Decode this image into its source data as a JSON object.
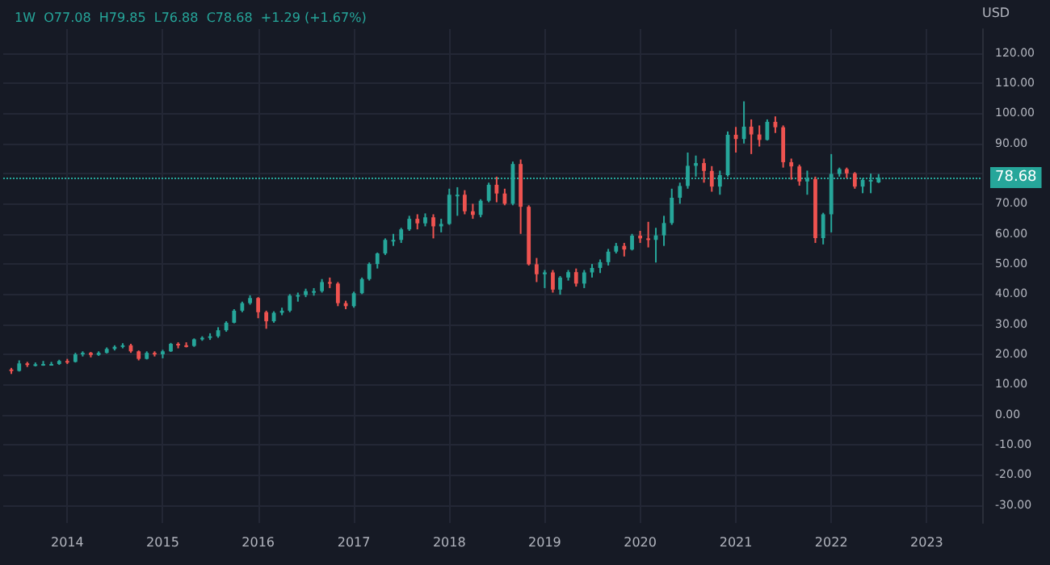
{
  "chart_data": {
    "type": "candlestick",
    "title": "1W  O77.08  H79.85  L76.88  C78.68  +1.29 (+1.67%)",
    "ylabel": "USD",
    "x": [
      "2013-06",
      "2013-07",
      "2013-08",
      "2013-09",
      "2013-10",
      "2013-11",
      "2013-12",
      "2014-01",
      "2014-02",
      "2014-03",
      "2014-04",
      "2014-05",
      "2014-06",
      "2014-07",
      "2014-08",
      "2014-09",
      "2014-10",
      "2014-11",
      "2014-12",
      "2015-01",
      "2015-02",
      "2015-03",
      "2015-04",
      "2015-05",
      "2015-06",
      "2015-07",
      "2015-08",
      "2015-09",
      "2015-10",
      "2015-11",
      "2015-12",
      "2016-01",
      "2016-02",
      "2016-03",
      "2016-04",
      "2016-05",
      "2016-06",
      "2016-07",
      "2016-08",
      "2016-09",
      "2016-10",
      "2016-11",
      "2016-12",
      "2017-01",
      "2017-02",
      "2017-03",
      "2017-04",
      "2017-05",
      "2017-06",
      "2017-07",
      "2017-08",
      "2017-09",
      "2017-10",
      "2017-11",
      "2017-12",
      "2018-01",
      "2018-02",
      "2018-03",
      "2018-04",
      "2018-05",
      "2018-06",
      "2018-07",
      "2018-08",
      "2018-09",
      "2018-10",
      "2018-11",
      "2018-12",
      "2019-01",
      "2019-02",
      "2019-03",
      "2019-04",
      "2019-05",
      "2019-06",
      "2019-07",
      "2019-08",
      "2019-09",
      "2019-10",
      "2019-11",
      "2019-12",
      "2020-01",
      "2020-02",
      "2020-03",
      "2020-04",
      "2020-05",
      "2020-06",
      "2020-07",
      "2020-08",
      "2020-09",
      "2020-10",
      "2020-11",
      "2020-12",
      "2021-01",
      "2021-02",
      "2021-03",
      "2021-04",
      "2021-05",
      "2021-06",
      "2021-07",
      "2021-08",
      "2021-09",
      "2021-10",
      "2021-11",
      "2021-12",
      "2022-01",
      "2022-02",
      "2022-03",
      "2022-04",
      "2022-05",
      "2022-06",
      "2022-07"
    ],
    "ohlc": [
      [
        15,
        15.5,
        13.5,
        14.5
      ],
      [
        14.5,
        18,
        14.3,
        17
      ],
      [
        17,
        17.5,
        15.8,
        16.5
      ],
      [
        16.5,
        17.3,
        16,
        16.7
      ],
      [
        16.7,
        17.8,
        16.2,
        16.8
      ],
      [
        16.8,
        17.5,
        16.3,
        16.8
      ],
      [
        16.8,
        18.2,
        16.5,
        17.8
      ],
      [
        17.8,
        18.5,
        16.8,
        17.5
      ],
      [
        17.5,
        20.5,
        17.3,
        20
      ],
      [
        20,
        21,
        19.3,
        20.5
      ],
      [
        20.5,
        20.8,
        19,
        19.8
      ],
      [
        19.8,
        21,
        19.5,
        20.5
      ],
      [
        20.5,
        22.3,
        20.3,
        21.8
      ],
      [
        21.8,
        23,
        21.3,
        22.5
      ],
      [
        22.5,
        23.7,
        22,
        23
      ],
      [
        23,
        23.5,
        20.5,
        21
      ],
      [
        21,
        21.3,
        18,
        18.5
      ],
      [
        18.5,
        21,
        18.3,
        20.5
      ],
      [
        20.5,
        21,
        19.3,
        20
      ],
      [
        20,
        21.5,
        18.7,
        21
      ],
      [
        21,
        23.8,
        20.8,
        23.5
      ],
      [
        23.5,
        24,
        22,
        23
      ],
      [
        23,
        24,
        22.3,
        22.8
      ],
      [
        22.8,
        25.3,
        22.5,
        25
      ],
      [
        25,
        26,
        24.5,
        25.5
      ],
      [
        25.5,
        27,
        24.8,
        26
      ],
      [
        26,
        29,
        25.5,
        28
      ],
      [
        28,
        31,
        27.5,
        30.5
      ],
      [
        30.5,
        35,
        30.3,
        34.5
      ],
      [
        34.5,
        37.5,
        34,
        37
      ],
      [
        37,
        39.6,
        36.5,
        38.7
      ],
      [
        38.7,
        39,
        32,
        34
      ],
      [
        34,
        34.5,
        28.5,
        31
      ],
      [
        31,
        34.3,
        30.5,
        33.8
      ],
      [
        33.8,
        35.5,
        33,
        34.5
      ],
      [
        34.5,
        40,
        34,
        39.5
      ],
      [
        39.5,
        40.5,
        37.5,
        39.7
      ],
      [
        39.7,
        41.8,
        39,
        41
      ],
      [
        41,
        42,
        39.5,
        41
      ],
      [
        41,
        45,
        40.5,
        44
      ],
      [
        44,
        45.5,
        42,
        43.5
      ],
      [
        43.5,
        44,
        36,
        37
      ],
      [
        37,
        37.8,
        35,
        36
      ],
      [
        36,
        40.8,
        35.5,
        40.3
      ],
      [
        40.3,
        45.5,
        40,
        45
      ],
      [
        45,
        50.5,
        44.5,
        50
      ],
      [
        50,
        53.8,
        48.5,
        53.5
      ],
      [
        53.5,
        58.5,
        53,
        58
      ],
      [
        58,
        60,
        56,
        58
      ],
      [
        58,
        62,
        57,
        61.5
      ],
      [
        61.5,
        66,
        61,
        65
      ],
      [
        65,
        66.5,
        61.5,
        63.5
      ],
      [
        63.5,
        66.8,
        62.5,
        65.5
      ],
      [
        65.5,
        66.5,
        58.5,
        62.5
      ],
      [
        62.5,
        65,
        60.5,
        63.3
      ],
      [
        63.3,
        75,
        63,
        73
      ],
      [
        73,
        75.5,
        66,
        73
      ],
      [
        73,
        74.5,
        66.5,
        67.5
      ],
      [
        67.5,
        70,
        65,
        66.3
      ],
      [
        66.3,
        71.5,
        65.5,
        71
      ],
      [
        71,
        77,
        70.5,
        76.3
      ],
      [
        76.3,
        79,
        70.5,
        73.4
      ],
      [
        73.4,
        75,
        69.5,
        70
      ],
      [
        70,
        84,
        69.5,
        83.2
      ],
      [
        83.2,
        84.7,
        60,
        69
      ],
      [
        69,
        69.5,
        49.5,
        49.9
      ],
      [
        49.9,
        52,
        44,
        46.6
      ],
      [
        46.6,
        48,
        42,
        47.2
      ],
      [
        47.2,
        48,
        40.5,
        41.5
      ],
      [
        41.5,
        46,
        39.8,
        45.5
      ],
      [
        45.5,
        48,
        44.5,
        47.3
      ],
      [
        47.3,
        48.5,
        42.5,
        43.5
      ],
      [
        43.5,
        48,
        42,
        47.2
      ],
      [
        47.2,
        50,
        45.5,
        48.7
      ],
      [
        48.7,
        51.5,
        47,
        50.6
      ],
      [
        50.6,
        55,
        49.5,
        54.1
      ],
      [
        54.1,
        57,
        53.5,
        56
      ],
      [
        56,
        57,
        52.5,
        54.8
      ],
      [
        54.8,
        60,
        54.5,
        59.4
      ],
      [
        59.4,
        61,
        57,
        58.5
      ],
      [
        58.5,
        64,
        55.5,
        58
      ],
      [
        58,
        62,
        50.5,
        59.5
      ],
      [
        59.5,
        66,
        56,
        63.6
      ],
      [
        63.6,
        75,
        63,
        72
      ],
      [
        72,
        77,
        70,
        75.9
      ],
      [
        75.9,
        87,
        75,
        82.6
      ],
      [
        82.6,
        86,
        79,
        83.5
      ],
      [
        83.5,
        85,
        77,
        80.9
      ],
      [
        80.9,
        82.5,
        74,
        75.7
      ],
      [
        75.7,
        81,
        73,
        79.5
      ],
      [
        79.5,
        94,
        79,
        92.9
      ],
      [
        92.9,
        95.5,
        87,
        91.5
      ],
      [
        91.5,
        104,
        90,
        95.6
      ],
      [
        95.6,
        98,
        86.5,
        93
      ],
      [
        93,
        96,
        89,
        91.2
      ],
      [
        91.2,
        98,
        91,
        97.2
      ],
      [
        97.2,
        99,
        93.5,
        95.4
      ],
      [
        95.4,
        96,
        82,
        83.8
      ],
      [
        83.8,
        85,
        78,
        82.4
      ],
      [
        82.4,
        83,
        76,
        77.4
      ],
      [
        77.4,
        81,
        73,
        78.2
      ],
      [
        78.2,
        79,
        57,
        58.6
      ],
      [
        58.6,
        67,
        56.5,
        66.5
      ],
      [
        66.5,
        86.5,
        60.5,
        79.9
      ],
      [
        79.9,
        82,
        79,
        81.5
      ],
      [
        81.5,
        82,
        78.5,
        80.1
      ],
      [
        80.1,
        80.5,
        75,
        75.7
      ],
      [
        75.7,
        78.5,
        73.5,
        77.9
      ],
      [
        77.9,
        80,
        73.5,
        77.9
      ],
      [
        77.08,
        79.85,
        76.88,
        78.68
      ]
    ],
    "xlim": [
      "2013-05",
      "2023-08"
    ],
    "xticks": [
      "2014",
      "2015",
      "2016",
      "2017",
      "2018",
      "2019",
      "2020",
      "2021",
      "2022",
      "2023"
    ],
    "ylim": [
      -36,
      128
    ],
    "yticks": [
      {
        "value": -30,
        "label": "-30.00"
      },
      {
        "value": -20,
        "label": "-20.00"
      },
      {
        "value": -10,
        "label": "-10.00"
      },
      {
        "value": 0,
        "label": "0.00"
      },
      {
        "value": 10,
        "label": "10.00"
      },
      {
        "value": 20,
        "label": "20.00"
      },
      {
        "value": 30,
        "label": "30.00"
      },
      {
        "value": 40,
        "label": "40.00"
      },
      {
        "value": 50,
        "label": "50.00"
      },
      {
        "value": 60,
        "label": "60.00"
      },
      {
        "value": 70,
        "label": "70.00"
      },
      {
        "value": 80,
        "label": null
      },
      {
        "value": 90,
        "label": "90.00"
      },
      {
        "value": 100,
        "label": "100.00"
      },
      {
        "value": 110,
        "label": "110.00"
      },
      {
        "value": 120,
        "label": "120.00"
      }
    ],
    "ref_lines": [
      {
        "axis": "y",
        "value": 78.68,
        "label": "78.68",
        "color": "#26a69a",
        "line_style": "dotted"
      }
    ],
    "grid": true
  }
}
